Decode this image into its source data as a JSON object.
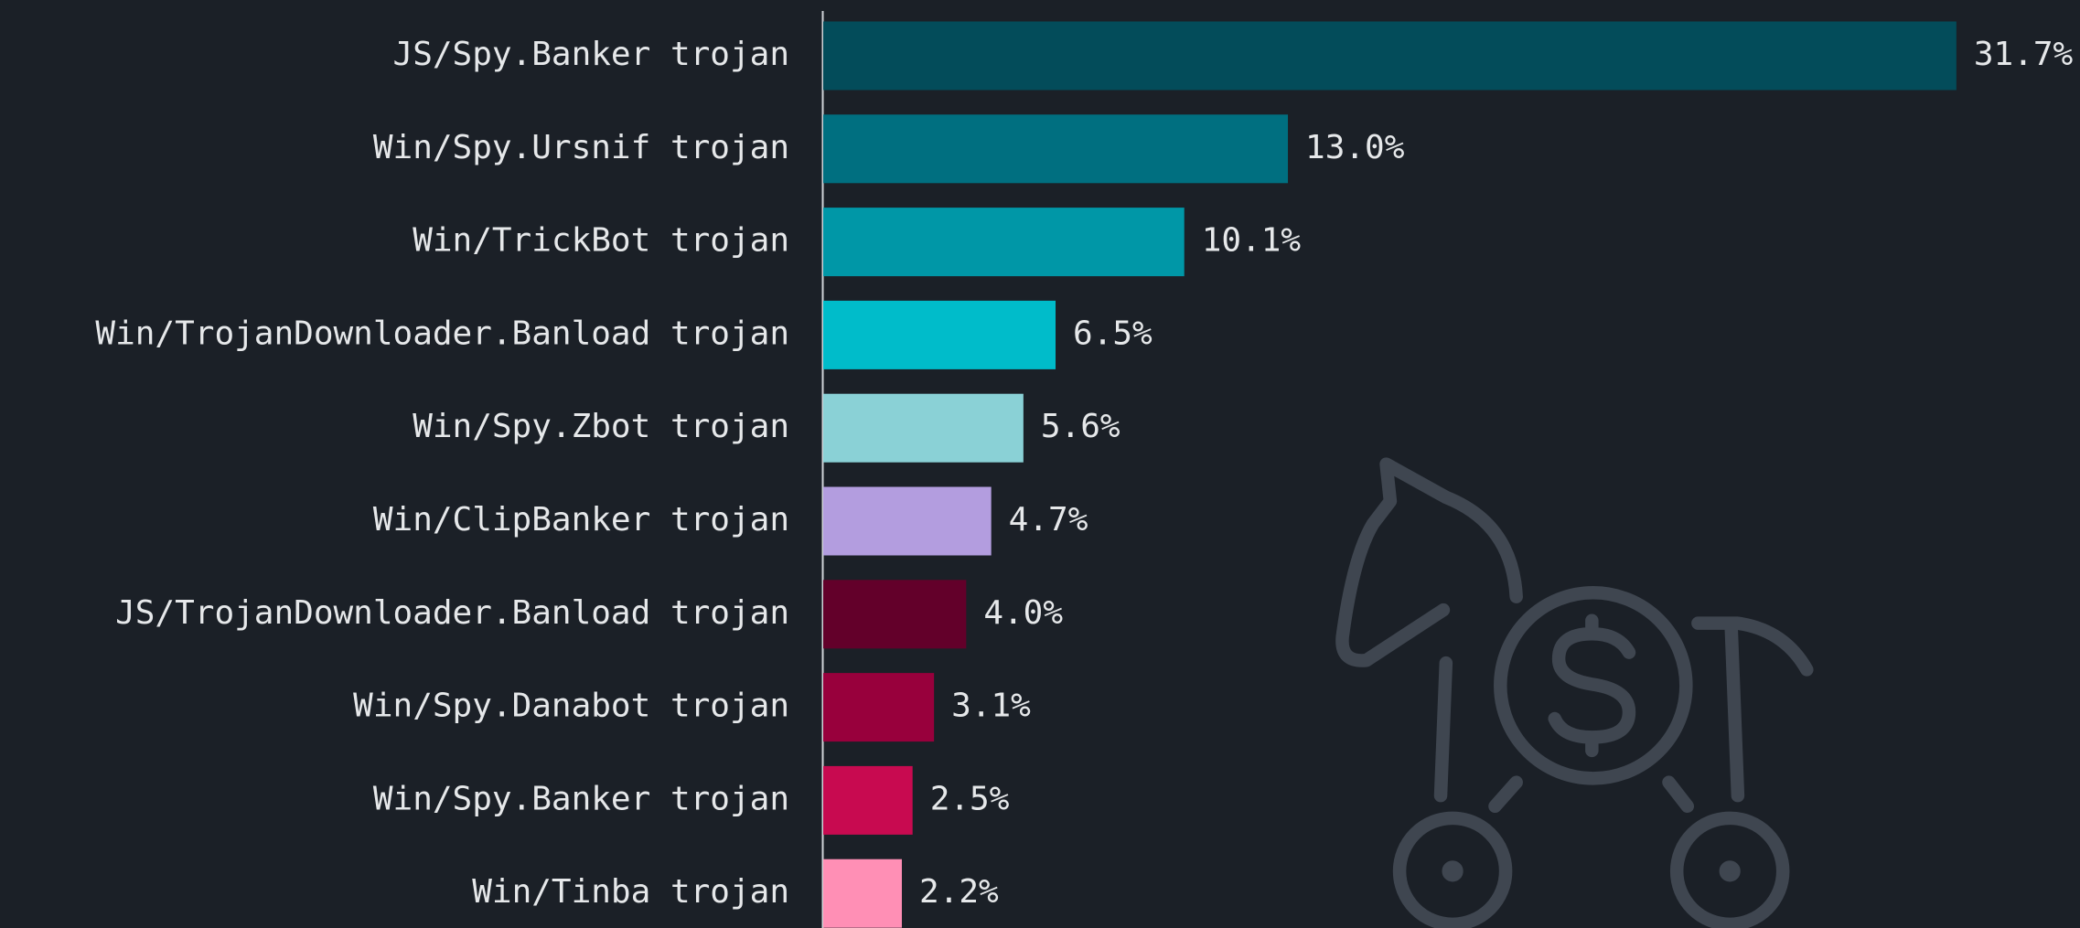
{
  "chart_data": {
    "type": "bar",
    "orientation": "horizontal",
    "categories": [
      "JS/Spy.Banker trojan",
      "Win/Spy.Ursnif trojan",
      "Win/TrickBot trojan",
      "Win/TrojanDownloader.Banload trojan",
      "Win/Spy.Zbot trojan",
      "Win/ClipBanker trojan",
      "JS/TrojanDownloader.Banload trojan",
      "Win/Spy.Danabot trojan",
      "Win/Spy.Banker trojan",
      "Win/Tinba trojan"
    ],
    "values": [
      31.7,
      13.0,
      10.1,
      6.5,
      5.6,
      4.7,
      4.0,
      3.1,
      2.5,
      2.2
    ],
    "value_labels": [
      "31.7%",
      "13.0%",
      "10.1%",
      "6.5%",
      "5.6%",
      "4.7%",
      "4.0%",
      "3.1%",
      "2.5%",
      "2.2%"
    ],
    "colors": [
      "#034c5a",
      "#006f80",
      "#0097a7",
      "#00bcca",
      "#8ad1d6",
      "#b39ddf",
      "#63002a",
      "#98003c",
      "#c80a50",
      "#ff8fb5"
    ]
  }
}
